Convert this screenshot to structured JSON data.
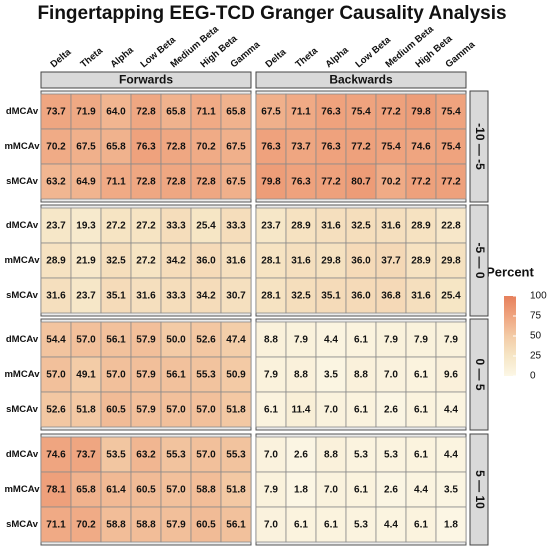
{
  "chart_data": {
    "type": "heatmap",
    "title": "Fingertapping EEG-TCD Granger Causality Analysis",
    "columns": [
      "Delta",
      "Theta",
      "Alpha",
      "Low Beta",
      "Medium Beta",
      "High Beta",
      "Gamma"
    ],
    "rows": [
      "dMCAv",
      "mMCAv",
      "sMCAv"
    ],
    "col_facets": [
      "Forwards",
      "Backwards"
    ],
    "row_facets": [
      "-10 — -5",
      "-5 — 0",
      "0 — 5",
      "5 — 10"
    ],
    "legend_title": "Percent",
    "clim": [
      0,
      100
    ],
    "legend_ticks": [
      0,
      25,
      50,
      75,
      100
    ],
    "colorscale": [
      "#fcf7e6",
      "#f6e6c6",
      "#f3cba6",
      "#efa47f",
      "#e6805c"
    ],
    "values": [
      [
        [
          [
            73.7,
            71.9,
            64.0,
            72.8,
            65.8,
            71.1,
            65.8
          ],
          [
            70.2,
            67.5,
            65.8,
            76.3,
            72.8,
            70.2,
            67.5
          ],
          [
            63.2,
            64.9,
            71.1,
            72.8,
            72.8,
            72.8,
            67.5
          ]
        ],
        [
          [
            67.5,
            71.1,
            76.3,
            75.4,
            77.2,
            79.8,
            75.4
          ],
          [
            76.3,
            73.7,
            76.3,
            77.2,
            75.4,
            74.6,
            75.4
          ],
          [
            79.8,
            76.3,
            77.2,
            80.7,
            70.2,
            77.2,
            77.2
          ]
        ]
      ],
      [
        [
          [
            23.7,
            19.3,
            27.2,
            27.2,
            33.3,
            25.4,
            33.3
          ],
          [
            28.9,
            21.9,
            32.5,
            27.2,
            34.2,
            36.0,
            31.6
          ],
          [
            31.6,
            23.7,
            35.1,
            31.6,
            33.3,
            34.2,
            30.7
          ]
        ],
        [
          [
            23.7,
            28.9,
            31.6,
            32.5,
            31.6,
            28.9,
            22.8
          ],
          [
            28.1,
            31.6,
            29.8,
            36.0,
            37.7,
            28.9,
            29.8
          ],
          [
            28.1,
            32.5,
            35.1,
            36.0,
            36.8,
            31.6,
            25.4
          ]
        ]
      ],
      [
        [
          [
            54.4,
            57.0,
            56.1,
            57.9,
            50.0,
            52.6,
            47.4
          ],
          [
            57.0,
            49.1,
            57.0,
            57.9,
            56.1,
            55.3,
            50.9
          ],
          [
            52.6,
            51.8,
            60.5,
            57.9,
            57.0,
            57.0,
            51.8
          ]
        ],
        [
          [
            8.8,
            7.9,
            4.4,
            6.1,
            7.9,
            7.9,
            7.9
          ],
          [
            7.9,
            8.8,
            3.5,
            8.8,
            7.0,
            6.1,
            9.6
          ],
          [
            6.1,
            11.4,
            7.0,
            6.1,
            2.6,
            6.1,
            4.4
          ]
        ]
      ],
      [
        [
          [
            74.6,
            73.7,
            53.5,
            63.2,
            55.3,
            57.0,
            55.3
          ],
          [
            78.1,
            65.8,
            61.4,
            60.5,
            57.0,
            58.8,
            51.8
          ],
          [
            71.1,
            70.2,
            58.8,
            58.8,
            57.9,
            60.5,
            56.1
          ]
        ],
        [
          [
            7.0,
            2.6,
            8.8,
            5.3,
            5.3,
            6.1,
            4.4
          ],
          [
            7.9,
            1.8,
            7.0,
            6.1,
            2.6,
            4.4,
            3.5
          ],
          [
            7.0,
            6.1,
            6.1,
            5.3,
            4.4,
            6.1,
            1.8
          ]
        ]
      ]
    ],
    "value_labels": [
      [
        [
          [
            "73.7",
            "71.9",
            "64.0",
            "72.8",
            "65.8",
            "71.1",
            "65.8"
          ],
          [
            "70.2",
            "67.5",
            "65.8",
            "76.3",
            "72.8",
            "70.2",
            "67.5"
          ],
          [
            "63.2",
            "64.9",
            "71.1",
            "72.8",
            "72.8",
            "72.8",
            "67.5"
          ]
        ],
        [
          [
            "67.5",
            "71.1",
            "76.3",
            "75.4",
            "77.2",
            "79.8",
            "75.4"
          ],
          [
            "76.3",
            "73.7",
            "76.3",
            "77.2",
            "75.4",
            "74.6",
            "75.4"
          ],
          [
            "79.8",
            "76.3",
            "77.2",
            "80.7",
            "70.2",
            "77.2",
            "77.2"
          ]
        ]
      ],
      [
        [
          [
            "23.7",
            "19.3",
            "27.2",
            "27.2",
            "33.3",
            "25.4",
            "33.3"
          ],
          [
            "28.9",
            "21.9",
            "32.5",
            "27.2",
            "34.2",
            "36.0",
            "31.6"
          ],
          [
            "31.6",
            "23.7",
            "35.1",
            "31.6",
            "33.3",
            "34.2",
            "30.7"
          ]
        ],
        [
          [
            "23.7",
            "28.9",
            "31.6",
            "32.5",
            "31.6",
            "28.9",
            "22.8"
          ],
          [
            "28.1",
            "31.6",
            "29.8",
            "36.0",
            "37.7",
            "28.9",
            "29.8"
          ],
          [
            "28.1",
            "32.5",
            "35.1",
            "36.0",
            "36.8",
            "31.6",
            "25.4"
          ]
        ]
      ],
      [
        [
          [
            "54.4",
            "57.0",
            "56.1",
            "57.9",
            "50.0",
            "52.6",
            "47.4"
          ],
          [
            "57.0",
            "49.1",
            "57.0",
            "57.9",
            "56.1",
            "55.3",
            "50.9"
          ],
          [
            "52.6",
            "51.8",
            "60.5",
            "57.9",
            "57.0",
            "57.0",
            "51.8"
          ]
        ],
        [
          [
            "8.8",
            "7.9",
            "4.4",
            "6.1",
            "7.9",
            "7.9",
            "7.9"
          ],
          [
            "7.9",
            "8.8",
            "3.5",
            "8.8",
            "7.0",
            "6.1",
            "9.6"
          ],
          [
            "6.1",
            "11.4",
            "7.0",
            "6.1",
            "2.6",
            "6.1",
            "4.4"
          ]
        ]
      ],
      [
        [
          [
            "74.6",
            "73.7",
            "53.5",
            "63.2",
            "55.3",
            "57.0",
            "55.3"
          ],
          [
            "78.1",
            "65.8",
            "61.4",
            "60.5",
            "57.0",
            "58.8",
            "51.8"
          ],
          [
            "71.1",
            "70.2",
            "58.8",
            "58.8",
            "57.9",
            "60.5",
            "56.1"
          ]
        ],
        [
          [
            "7.0",
            "2.6",
            "8.8",
            "5.3",
            "5.3",
            "6.1",
            "4.4"
          ],
          [
            "7.9",
            "1.8",
            "7.0",
            "6.1",
            "2.6",
            "4.4",
            "3.5"
          ],
          [
            "7.0",
            "6.1",
            "6.1",
            "5.3",
            "4.4",
            "6.1",
            "1.8"
          ]
        ]
      ]
    ]
  }
}
